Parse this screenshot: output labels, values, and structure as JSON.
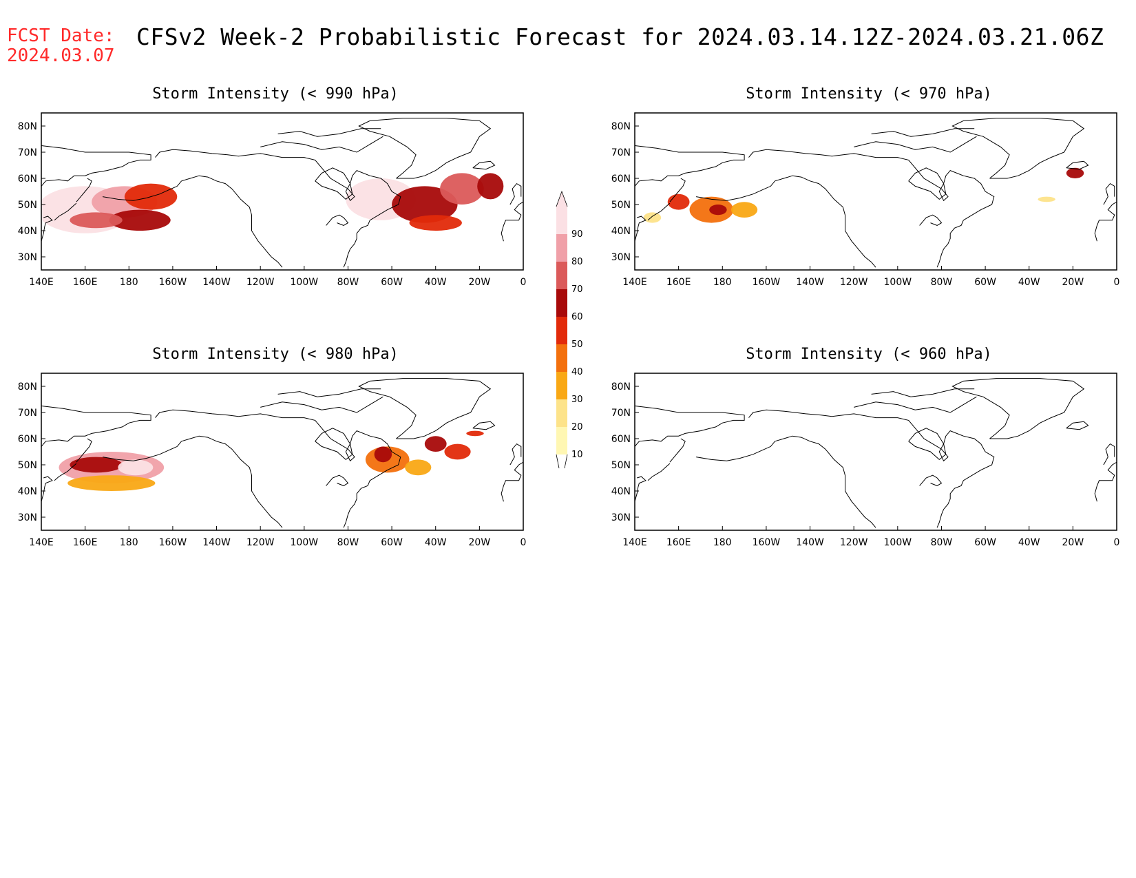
{
  "header": {
    "fcst_date_label": "FCST Date:",
    "fcst_date_value": "2024.03.07",
    "title": "CFSv2 Week-2 Probabilistic Forecast for 2024.03.14.12Z-2024.03.21.06Z"
  },
  "colors": {
    "header_red": "#ff2a2a",
    "levels": [
      "#fff7b3",
      "#fde38a",
      "#f9a815",
      "#f3700d",
      "#e22a0a",
      "#a80a0a",
      "#db5a5a",
      "#f0a0a8",
      "#fbe0e4"
    ]
  },
  "colorbar": {
    "ticks": [
      "10",
      "20",
      "30",
      "40",
      "50",
      "60",
      "70",
      "80",
      "90"
    ]
  },
  "map_axes": {
    "lon_labels": [
      "140E",
      "160E",
      "180",
      "160W",
      "140W",
      "120W",
      "100W",
      "80W",
      "60W",
      "40W",
      "20W",
      "0"
    ],
    "lat_labels": [
      "30N",
      "40N",
      "50N",
      "60N",
      "70N",
      "80N"
    ],
    "lon_range": [
      140,
      360
    ],
    "lat_range": [
      25,
      85
    ]
  },
  "panels": [
    {
      "title": "Storm Intensity (< 990 hPa)",
      "blobs": [
        {
          "lon": 160,
          "lat": 48,
          "rlon": 22,
          "rlat": 9,
          "level": 8
        },
        {
          "lon": 178,
          "lat": 51,
          "rlon": 15,
          "rlat": 6,
          "level": 7
        },
        {
          "lon": 185,
          "lat": 44,
          "rlon": 14,
          "rlat": 4,
          "level": 5
        },
        {
          "lon": 165,
          "lat": 44,
          "rlon": 12,
          "rlat": 3,
          "level": 6
        },
        {
          "lon": 190,
          "lat": 53,
          "rlon": 12,
          "rlat": 5,
          "level": 4
        },
        {
          "lon": 295,
          "lat": 52,
          "rlon": 16,
          "rlat": 8,
          "level": 8
        },
        {
          "lon": 315,
          "lat": 50,
          "rlon": 15,
          "rlat": 7,
          "level": 5
        },
        {
          "lon": 332,
          "lat": 56,
          "rlon": 10,
          "rlat": 6,
          "level": 6
        },
        {
          "lon": 320,
          "lat": 43,
          "rlon": 12,
          "rlat": 3,
          "level": 4
        },
        {
          "lon": 345,
          "lat": 57,
          "rlon": 6,
          "rlat": 5,
          "level": 5
        }
      ]
    },
    {
      "title": "Storm Intensity (< 970 hPa)",
      "blobs": [
        {
          "lon": 160,
          "lat": 51,
          "rlon": 5,
          "rlat": 3,
          "level": 4
        },
        {
          "lon": 175,
          "lat": 48,
          "rlon": 10,
          "rlat": 5,
          "level": 3
        },
        {
          "lon": 178,
          "lat": 48,
          "rlon": 4,
          "rlat": 2,
          "level": 5
        },
        {
          "lon": 148,
          "lat": 45,
          "rlon": 4,
          "rlat": 2,
          "level": 1
        },
        {
          "lon": 190,
          "lat": 48,
          "rlon": 6,
          "rlat": 3,
          "level": 2
        },
        {
          "lon": 328,
          "lat": 52,
          "rlon": 4,
          "rlat": 1,
          "level": 1
        },
        {
          "lon": 341,
          "lat": 62,
          "rlon": 4,
          "rlat": 2,
          "level": 5
        }
      ]
    },
    {
      "title": "Storm Intensity (< 980 hPa)",
      "blobs": [
        {
          "lon": 172,
          "lat": 49,
          "rlon": 24,
          "rlat": 6,
          "level": 7
        },
        {
          "lon": 165,
          "lat": 50,
          "rlon": 12,
          "rlat": 3,
          "level": 5
        },
        {
          "lon": 183,
          "lat": 49,
          "rlon": 8,
          "rlat": 3,
          "level": 8
        },
        {
          "lon": 172,
          "lat": 43,
          "rlon": 20,
          "rlat": 3,
          "level": 2
        },
        {
          "lon": 298,
          "lat": 52,
          "rlon": 10,
          "rlat": 5,
          "level": 3
        },
        {
          "lon": 296,
          "lat": 54,
          "rlon": 4,
          "rlat": 3,
          "level": 5
        },
        {
          "lon": 320,
          "lat": 58,
          "rlon": 5,
          "rlat": 3,
          "level": 5
        },
        {
          "lon": 330,
          "lat": 55,
          "rlon": 6,
          "rlat": 3,
          "level": 4
        },
        {
          "lon": 312,
          "lat": 49,
          "rlon": 6,
          "rlat": 3,
          "level": 2
        },
        {
          "lon": 338,
          "lat": 62,
          "rlon": 4,
          "rlat": 1,
          "level": 4
        }
      ]
    },
    {
      "title": "Storm Intensity (< 960 hPa)",
      "blobs": []
    }
  ]
}
